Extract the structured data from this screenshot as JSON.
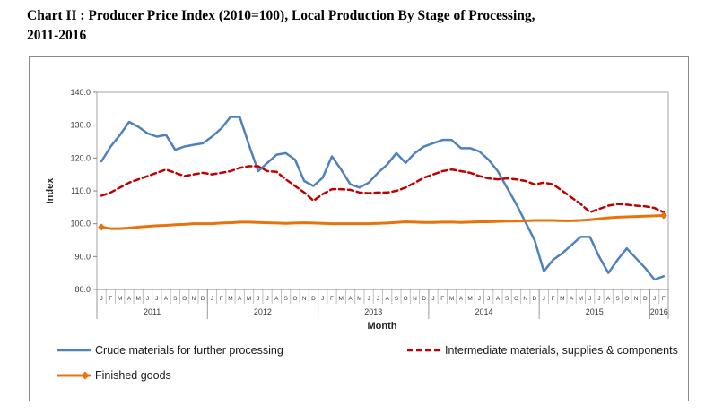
{
  "title_line1": "Chart II : Producer Price Index (2010=100), Local Production By Stage of Processing,",
  "title_line2": "2011-2016",
  "axes": {
    "y_label": "Index",
    "x_label": "Month",
    "y_ticks": [
      "140.0",
      "130.0",
      "120.0",
      "110.0",
      "100.0",
      "90.0",
      "80.0"
    ],
    "y_min": 80,
    "y_max": 140,
    "month_letters": [
      "J",
      "F",
      "M",
      "A",
      "M",
      "J",
      "J",
      "A",
      "S",
      "O",
      "N",
      "D"
    ],
    "years": [
      {
        "label": "2011",
        "months": 12
      },
      {
        "label": "2012",
        "months": 12
      },
      {
        "label": "2013",
        "months": 12
      },
      {
        "label": "2014",
        "months": 12
      },
      {
        "label": "2015",
        "months": 12
      },
      {
        "label": "2016",
        "months": 2
      }
    ]
  },
  "colors": {
    "crude": "#4F81BD",
    "intermediate": "#C00000",
    "finished": "#E8730C",
    "plot_border": "#A6A6A6",
    "axis_line": "#808080",
    "tick_text": "#3A3A3A"
  },
  "chart_data": {
    "type": "line",
    "title": "Producer Price Index (2010=100), Local Production By Stage of Processing, 2011-2016",
    "xlabel": "Month",
    "ylabel": "Index",
    "ylim": [
      80,
      140
    ],
    "grid": false,
    "legend_position": "bottom",
    "categories": [
      "2011-01",
      "2011-02",
      "2011-03",
      "2011-04",
      "2011-05",
      "2011-06",
      "2011-07",
      "2011-08",
      "2011-09",
      "2011-10",
      "2011-11",
      "2011-12",
      "2012-01",
      "2012-02",
      "2012-03",
      "2012-04",
      "2012-05",
      "2012-06",
      "2012-07",
      "2012-08",
      "2012-09",
      "2012-10",
      "2012-11",
      "2012-12",
      "2013-01",
      "2013-02",
      "2013-03",
      "2013-04",
      "2013-05",
      "2013-06",
      "2013-07",
      "2013-08",
      "2013-09",
      "2013-10",
      "2013-11",
      "2013-12",
      "2014-01",
      "2014-02",
      "2014-03",
      "2014-04",
      "2014-05",
      "2014-06",
      "2014-07",
      "2014-08",
      "2014-09",
      "2014-10",
      "2014-11",
      "2014-12",
      "2015-01",
      "2015-02",
      "2015-03",
      "2015-04",
      "2015-05",
      "2015-06",
      "2015-07",
      "2015-08",
      "2015-09",
      "2015-10",
      "2015-11",
      "2015-12",
      "2016-01",
      "2016-02"
    ],
    "series": [
      {
        "id": "crude",
        "name": "Crude materials for further processing",
        "color": "#4F81BD",
        "style": "solid",
        "width": 2.5,
        "values": [
          119,
          123.5,
          127,
          131,
          129.5,
          127.5,
          126.5,
          127,
          122.5,
          123.5,
          124,
          124.5,
          126.5,
          129,
          132.5,
          132.5,
          124,
          116,
          118.5,
          121,
          121.5,
          119.5,
          113,
          111.5,
          114,
          120.5,
          116.5,
          112,
          111,
          112.5,
          115.5,
          118,
          121.5,
          118.5,
          121.5,
          123.5,
          124.5,
          125.5,
          125.5,
          123,
          123,
          122,
          119.5,
          116,
          111,
          106,
          100.5,
          95,
          85.5,
          89,
          91,
          93.5,
          96,
          96,
          90,
          85,
          89,
          92.5,
          89.5,
          86.5,
          83,
          84
        ]
      },
      {
        "id": "intermediate",
        "name": "Intermediate materials, supplies & components",
        "color": "#C00000",
        "style": "dashed",
        "width": 2.5,
        "dash": "6 4",
        "values": [
          108.5,
          109.5,
          111,
          112.5,
          113.5,
          114.5,
          115.5,
          116.5,
          115.5,
          114.5,
          115,
          115.5,
          115,
          115.5,
          116,
          117,
          117.5,
          117.5,
          116,
          115.8,
          113.5,
          111.5,
          109.5,
          107,
          109,
          110.5,
          110.5,
          110.3,
          109.5,
          109.3,
          109.5,
          109.5,
          110,
          111,
          112.5,
          114,
          115,
          116,
          116.5,
          116,
          115.5,
          114.5,
          113.8,
          113.5,
          113.8,
          113.5,
          113,
          112,
          112.5,
          112,
          110,
          108,
          106,
          103.5,
          104.5,
          105.5,
          106,
          105.8,
          105.5,
          105.3,
          104.8,
          103.5
        ]
      },
      {
        "id": "finished",
        "name": "Finished goods",
        "color": "#E8730C",
        "style": "solid",
        "width": 3,
        "marker": "diamond",
        "values": [
          99,
          98.5,
          98.5,
          98.7,
          99,
          99.2,
          99.4,
          99.5,
          99.7,
          99.8,
          100,
          100,
          100,
          100.2,
          100.3,
          100.5,
          100.5,
          100.4,
          100.3,
          100.2,
          100.1,
          100.2,
          100.3,
          100.2,
          100.1,
          100,
          100,
          100,
          100,
          100,
          100.1,
          100.2,
          100.4,
          100.6,
          100.5,
          100.4,
          100.4,
          100.5,
          100.5,
          100.4,
          100.5,
          100.6,
          100.6,
          100.7,
          100.8,
          100.8,
          100.9,
          101,
          101,
          101,
          100.9,
          100.9,
          101,
          101.2,
          101.5,
          101.8,
          102,
          102.1,
          102.2,
          102.3,
          102.4,
          102.5
        ]
      }
    ]
  }
}
